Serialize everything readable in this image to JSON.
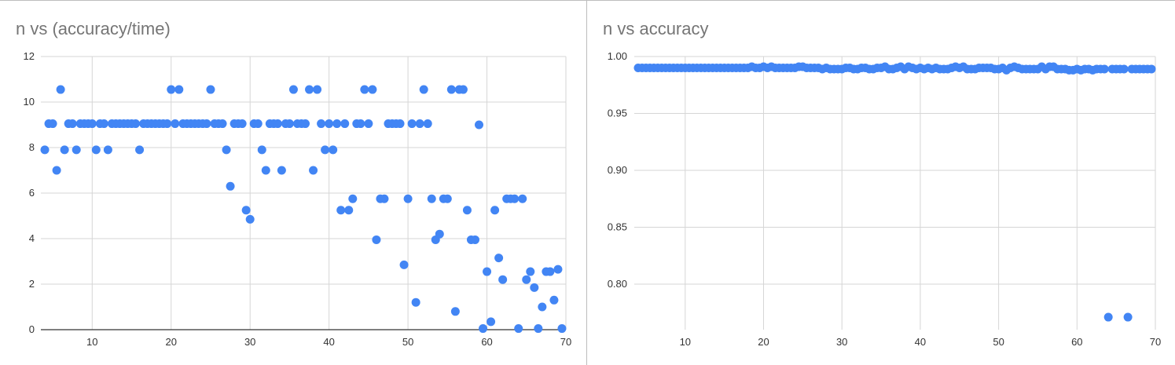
{
  "chart_data": [
    {
      "type": "scatter",
      "title": "n vs (accuracy/time)",
      "xlabel": "",
      "ylabel": "",
      "xlim": [
        3.5,
        70
      ],
      "ylim": [
        0,
        12
      ],
      "x_ticks": [
        10,
        20,
        30,
        40,
        50,
        60,
        70
      ],
      "y_ticks": [
        0,
        2,
        4,
        6,
        8,
        10,
        12
      ],
      "grid": true,
      "color": "#4285f4",
      "points": [
        [
          4,
          7.9
        ],
        [
          4.5,
          9.05
        ],
        [
          5,
          9.05
        ],
        [
          5.5,
          7.0
        ],
        [
          6,
          10.55
        ],
        [
          6.5,
          7.9
        ],
        [
          7,
          9.05
        ],
        [
          7.5,
          9.05
        ],
        [
          8,
          7.9
        ],
        [
          8.5,
          9.05
        ],
        [
          9,
          9.05
        ],
        [
          9.5,
          9.05
        ],
        [
          10,
          9.05
        ],
        [
          10.5,
          7.9
        ],
        [
          11,
          9.05
        ],
        [
          11.5,
          9.05
        ],
        [
          12,
          7.9
        ],
        [
          12.5,
          9.05
        ],
        [
          13,
          9.05
        ],
        [
          13.5,
          9.05
        ],
        [
          14,
          9.05
        ],
        [
          14.5,
          9.05
        ],
        [
          15,
          9.05
        ],
        [
          15.5,
          9.05
        ],
        [
          16,
          7.9
        ],
        [
          16.5,
          9.05
        ],
        [
          17,
          9.05
        ],
        [
          17.5,
          9.05
        ],
        [
          18,
          9.05
        ],
        [
          18.5,
          9.05
        ],
        [
          19,
          9.05
        ],
        [
          19.5,
          9.05
        ],
        [
          20,
          10.55
        ],
        [
          20.5,
          9.05
        ],
        [
          21,
          10.55
        ],
        [
          21.5,
          9.05
        ],
        [
          22,
          9.05
        ],
        [
          22.5,
          9.05
        ],
        [
          23,
          9.05
        ],
        [
          23.5,
          9.05
        ],
        [
          24,
          9.05
        ],
        [
          24.5,
          9.05
        ],
        [
          25,
          10.55
        ],
        [
          25.5,
          9.05
        ],
        [
          26,
          9.05
        ],
        [
          26.5,
          9.05
        ],
        [
          27,
          7.9
        ],
        [
          27.5,
          6.3
        ],
        [
          28,
          9.05
        ],
        [
          28.5,
          9.05
        ],
        [
          29,
          9.05
        ],
        [
          29.5,
          5.25
        ],
        [
          30,
          4.85
        ],
        [
          30.5,
          9.05
        ],
        [
          31,
          9.05
        ],
        [
          31.5,
          7.9
        ],
        [
          32,
          7.0
        ],
        [
          32.5,
          9.05
        ],
        [
          33,
          9.05
        ],
        [
          33.5,
          9.05
        ],
        [
          34,
          7.0
        ],
        [
          34.5,
          9.05
        ],
        [
          35,
          9.05
        ],
        [
          35.5,
          10.55
        ],
        [
          36,
          9.05
        ],
        [
          36.5,
          9.05
        ],
        [
          37,
          9.05
        ],
        [
          37.5,
          10.55
        ],
        [
          38,
          7.0
        ],
        [
          38.5,
          10.55
        ],
        [
          39,
          9.05
        ],
        [
          39.5,
          7.9
        ],
        [
          40,
          9.05
        ],
        [
          40.5,
          7.9
        ],
        [
          41,
          9.05
        ],
        [
          41.5,
          5.25
        ],
        [
          42,
          9.05
        ],
        [
          42.5,
          5.25
        ],
        [
          43,
          5.75
        ],
        [
          43.5,
          9.05
        ],
        [
          44,
          9.05
        ],
        [
          44.5,
          10.55
        ],
        [
          45,
          9.05
        ],
        [
          45.5,
          10.55
        ],
        [
          46,
          3.95
        ],
        [
          46.5,
          5.75
        ],
        [
          47,
          5.75
        ],
        [
          47.5,
          9.05
        ],
        [
          48,
          9.05
        ],
        [
          48.5,
          9.05
        ],
        [
          49,
          9.05
        ],
        [
          49.5,
          2.85
        ],
        [
          50,
          5.75
        ],
        [
          50.5,
          9.05
        ],
        [
          51,
          1.2
        ],
        [
          51.5,
          9.05
        ],
        [
          52,
          10.55
        ],
        [
          52.5,
          9.05
        ],
        [
          53,
          5.75
        ],
        [
          53.5,
          3.95
        ],
        [
          54,
          4.2
        ],
        [
          54.5,
          5.75
        ],
        [
          55,
          5.75
        ],
        [
          55.5,
          10.55
        ],
        [
          56,
          0.8
        ],
        [
          56.5,
          10.55
        ],
        [
          57,
          10.55
        ],
        [
          57.5,
          5.25
        ],
        [
          58,
          3.95
        ],
        [
          58.5,
          3.95
        ],
        [
          59,
          9.0
        ],
        [
          59.5,
          0.05
        ],
        [
          60,
          2.55
        ],
        [
          60.5,
          0.35
        ],
        [
          61,
          5.25
        ],
        [
          61.5,
          3.15
        ],
        [
          62,
          2.2
        ],
        [
          62.5,
          5.75
        ],
        [
          63,
          5.75
        ],
        [
          63.5,
          5.75
        ],
        [
          64,
          0.05
        ],
        [
          64.5,
          5.75
        ],
        [
          65,
          2.2
        ],
        [
          65.5,
          2.55
        ],
        [
          66,
          1.85
        ],
        [
          66.5,
          0.05
        ],
        [
          67,
          1.0
        ],
        [
          67.5,
          2.55
        ],
        [
          68,
          2.55
        ],
        [
          68.5,
          1.3
        ],
        [
          69,
          2.65
        ],
        [
          69.5,
          0.05
        ]
      ]
    },
    {
      "type": "scatter",
      "title": "n vs accuracy",
      "xlabel": "",
      "ylabel": "",
      "xlim": [
        3.5,
        70
      ],
      "ylim": [
        0.76,
        1.0
      ],
      "x_ticks": [
        10,
        20,
        30,
        40,
        50,
        60,
        70
      ],
      "y_ticks": [
        "0.80",
        "0.85",
        "0.90",
        "0.95",
        "1.00"
      ],
      "grid": true,
      "color": "#4285f4",
      "points": [
        [
          4,
          0.99
        ],
        [
          4.5,
          0.99
        ],
        [
          5,
          0.99
        ],
        [
          5.5,
          0.99
        ],
        [
          6,
          0.99
        ],
        [
          6.5,
          0.99
        ],
        [
          7,
          0.99
        ],
        [
          7.5,
          0.99
        ],
        [
          8,
          0.99
        ],
        [
          8.5,
          0.99
        ],
        [
          9,
          0.99
        ],
        [
          9.5,
          0.99
        ],
        [
          10,
          0.99
        ],
        [
          10.5,
          0.99
        ],
        [
          11,
          0.99
        ],
        [
          11.5,
          0.99
        ],
        [
          12,
          0.99
        ],
        [
          12.5,
          0.99
        ],
        [
          13,
          0.99
        ],
        [
          13.5,
          0.99
        ],
        [
          14,
          0.99
        ],
        [
          14.5,
          0.99
        ],
        [
          15,
          0.99
        ],
        [
          15.5,
          0.99
        ],
        [
          16,
          0.99
        ],
        [
          16.5,
          0.99
        ],
        [
          17,
          0.99
        ],
        [
          17.5,
          0.99
        ],
        [
          18,
          0.99
        ],
        [
          18.5,
          0.991
        ],
        [
          19,
          0.99
        ],
        [
          19.5,
          0.99
        ],
        [
          20,
          0.991
        ],
        [
          20.5,
          0.99
        ],
        [
          21,
          0.991
        ],
        [
          21.5,
          0.99
        ],
        [
          22,
          0.99
        ],
        [
          22.5,
          0.99
        ],
        [
          23,
          0.99
        ],
        [
          23.5,
          0.99
        ],
        [
          24,
          0.99
        ],
        [
          24.5,
          0.991
        ],
        [
          25,
          0.991
        ],
        [
          25.5,
          0.99
        ],
        [
          26,
          0.99
        ],
        [
          26.5,
          0.99
        ],
        [
          27,
          0.99
        ],
        [
          27.5,
          0.989
        ],
        [
          28,
          0.99
        ],
        [
          28.5,
          0.989
        ],
        [
          29,
          0.989
        ],
        [
          29.5,
          0.989
        ],
        [
          30,
          0.989
        ],
        [
          30.5,
          0.99
        ],
        [
          31,
          0.99
        ],
        [
          31.5,
          0.989
        ],
        [
          32,
          0.989
        ],
        [
          32.5,
          0.99
        ],
        [
          33,
          0.99
        ],
        [
          33.5,
          0.989
        ],
        [
          34,
          0.989
        ],
        [
          34.5,
          0.99
        ],
        [
          35,
          0.99
        ],
        [
          35.5,
          0.991
        ],
        [
          36,
          0.989
        ],
        [
          36.5,
          0.989
        ],
        [
          37,
          0.99
        ],
        [
          37.5,
          0.991
        ],
        [
          38,
          0.989
        ],
        [
          38.5,
          0.991
        ],
        [
          39,
          0.99
        ],
        [
          39.5,
          0.989
        ],
        [
          40,
          0.99
        ],
        [
          40.5,
          0.989
        ],
        [
          41,
          0.99
        ],
        [
          41.5,
          0.989
        ],
        [
          42,
          0.99
        ],
        [
          42.5,
          0.989
        ],
        [
          43,
          0.989
        ],
        [
          43.5,
          0.989
        ],
        [
          44,
          0.99
        ],
        [
          44.5,
          0.991
        ],
        [
          45,
          0.99
        ],
        [
          45.5,
          0.991
        ],
        [
          46,
          0.989
        ],
        [
          46.5,
          0.989
        ],
        [
          47,
          0.989
        ],
        [
          47.5,
          0.99
        ],
        [
          48,
          0.99
        ],
        [
          48.5,
          0.99
        ],
        [
          49,
          0.99
        ],
        [
          49.5,
          0.989
        ],
        [
          50,
          0.989
        ],
        [
          50.5,
          0.99
        ],
        [
          51,
          0.988
        ],
        [
          51.5,
          0.99
        ],
        [
          52,
          0.991
        ],
        [
          52.5,
          0.99
        ],
        [
          53,
          0.989
        ],
        [
          53.5,
          0.989
        ],
        [
          54,
          0.989
        ],
        [
          54.5,
          0.989
        ],
        [
          55,
          0.989
        ],
        [
          55.5,
          0.991
        ],
        [
          56,
          0.989
        ],
        [
          56.5,
          0.991
        ],
        [
          57,
          0.991
        ],
        [
          57.5,
          0.989
        ],
        [
          58,
          0.989
        ],
        [
          58.5,
          0.989
        ],
        [
          59,
          0.988
        ],
        [
          59.5,
          0.988
        ],
        [
          60,
          0.989
        ],
        [
          60.5,
          0.988
        ],
        [
          61,
          0.989
        ],
        [
          61.5,
          0.989
        ],
        [
          62,
          0.988
        ],
        [
          62.5,
          0.989
        ],
        [
          63,
          0.989
        ],
        [
          63.5,
          0.989
        ],
        [
          64,
          0.771
        ],
        [
          64.5,
          0.989
        ],
        [
          65,
          0.989
        ],
        [
          65.5,
          0.989
        ],
        [
          66,
          0.989
        ],
        [
          66.5,
          0.771
        ],
        [
          67,
          0.989
        ],
        [
          67.5,
          0.989
        ],
        [
          68,
          0.989
        ],
        [
          68.5,
          0.989
        ],
        [
          69,
          0.989
        ],
        [
          69.5,
          0.989
        ]
      ]
    }
  ]
}
